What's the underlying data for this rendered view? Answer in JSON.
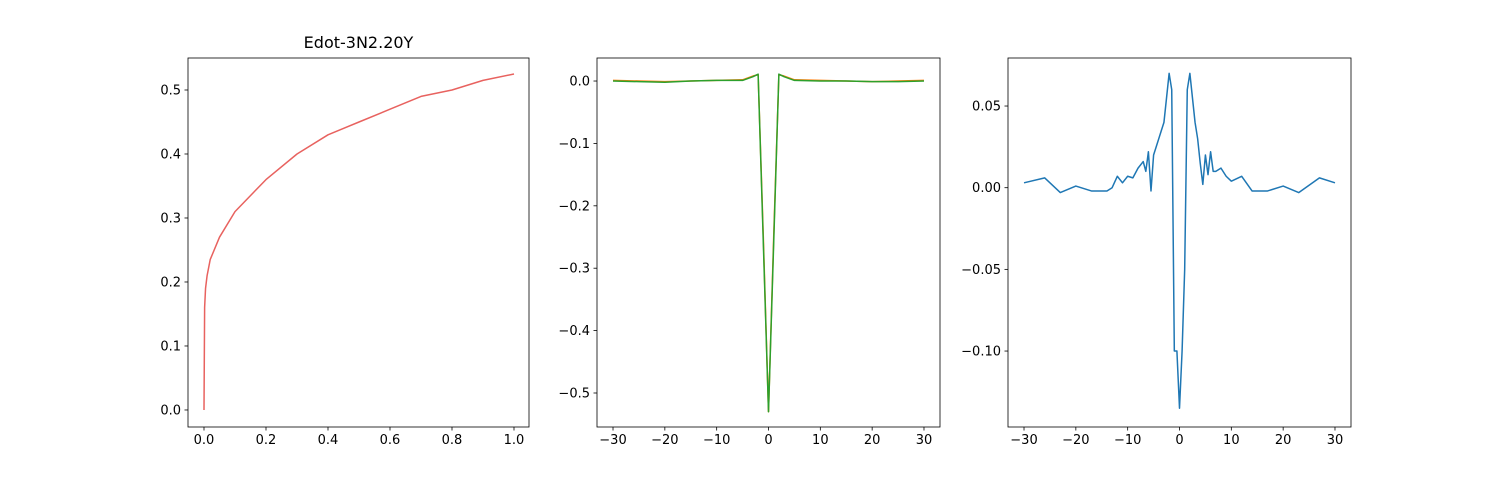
{
  "chart_data": [
    {
      "type": "line",
      "title": "Edot-3N2.20Y",
      "x": [
        0,
        0.002,
        0.005,
        0.01,
        0.02,
        0.05,
        0.1,
        0.2,
        0.3,
        0.4,
        0.5,
        0.6,
        0.7,
        0.8,
        0.9,
        1.0
      ],
      "series": [
        {
          "color": "#e8625f",
          "values": [
            0,
            0.16,
            0.19,
            0.21,
            0.235,
            0.27,
            0.31,
            0.36,
            0.4,
            0.43,
            0.45,
            0.47,
            0.49,
            0.5,
            0.515,
            0.525
          ]
        }
      ],
      "xlim": [
        -0.0516,
        1.0484
      ],
      "ylim": [
        -0.0266,
        0.55
      ],
      "xticks": [
        {
          "value": 0,
          "label": "0.0"
        },
        0.2,
        0.4,
        0.6,
        0.8,
        {
          "value": 1,
          "label": "1.0"
        }
      ],
      "yticks": [
        {
          "value": 0,
          "label": "0.0"
        },
        0.1,
        0.2,
        0.3,
        0.4,
        0.5
      ]
    },
    {
      "type": "line",
      "x": [
        -30,
        -25,
        -20,
        -15,
        -10,
        -5,
        -3,
        -2,
        -1,
        0,
        1,
        2,
        3,
        5,
        10,
        15,
        20,
        25,
        30
      ],
      "series": [
        {
          "color": "#ff7f0e",
          "values": [
            0.001,
            0.0,
            -0.001,
            0.0,
            0.001,
            0.002,
            0.008,
            0.01,
            -0.25,
            -0.53,
            -0.25,
            0.01,
            0.008,
            0.002,
            0.001,
            0.0,
            -0.001,
            0.0,
            0.001
          ]
        },
        {
          "color": "#2ca02c",
          "values": [
            0.0,
            -0.001,
            -0.002,
            0.0,
            0.001,
            0.001,
            0.007,
            0.011,
            -0.26,
            -0.53,
            -0.26,
            0.011,
            0.007,
            0.001,
            0.0,
            0.0,
            -0.001,
            -0.001,
            0.0
          ]
        }
      ],
      "xlim": [
        -33.09,
        33.09
      ],
      "ylim": [
        -0.5545,
        0.0369
      ],
      "xticks": [
        {
          "value": -30,
          "label": "−30"
        },
        {
          "value": -20,
          "label": "−20"
        },
        {
          "value": -10,
          "label": "−10"
        },
        0,
        10,
        20,
        30
      ],
      "yticks": [
        {
          "value": 0,
          "label": "0.0"
        },
        {
          "value": -0.1,
          "label": "−0.1"
        },
        {
          "value": -0.2,
          "label": "−0.2"
        },
        {
          "value": -0.3,
          "label": "−0.3"
        },
        {
          "value": -0.4,
          "label": "−0.4"
        },
        {
          "value": -0.5,
          "label": "−0.5"
        }
      ]
    },
    {
      "type": "line",
      "x": [
        -30,
        -26,
        -23,
        -20,
        -17,
        -14,
        -13,
        -12,
        -11,
        -10,
        -9,
        -8,
        -7,
        -6.5,
        -6,
        -5.5,
        -5,
        -4.5,
        -4,
        -3.5,
        -3,
        -2.5,
        -2,
        -1.5,
        -1,
        -0.5,
        0,
        0.5,
        1,
        1.5,
        2,
        2.5,
        3,
        3.5,
        4,
        4.5,
        5,
        5.5,
        6,
        6.5,
        7,
        8,
        9,
        10,
        12,
        14,
        17,
        20,
        23,
        27,
        30
      ],
      "series": [
        {
          "color": "#1f77b4",
          "values": [
            0.003,
            0.006,
            -0.003,
            0.001,
            -0.002,
            -0.002,
            0.0,
            0.007,
            0.003,
            0.007,
            0.006,
            0.012,
            0.016,
            0.01,
            0.022,
            -0.002,
            0.02,
            0.025,
            0.03,
            0.035,
            0.04,
            0.055,
            0.07,
            0.06,
            -0.1,
            -0.1,
            -0.135,
            -0.1,
            -0.05,
            0.06,
            0.07,
            0.055,
            0.04,
            0.03,
            0.015,
            0.002,
            0.02,
            0.008,
            0.022,
            0.01,
            0.01,
            0.012,
            0.007,
            0.004,
            0.007,
            -0.002,
            -0.002,
            0.001,
            -0.003,
            0.006,
            0.003
          ]
        }
      ],
      "xlim": [
        -33.09,
        33.09
      ],
      "ylim": [
        -0.1465,
        0.0794
      ],
      "xticks": [
        {
          "value": -30,
          "label": "−30"
        },
        {
          "value": -20,
          "label": "−20"
        },
        {
          "value": -10,
          "label": "−10"
        },
        0,
        10,
        20,
        30
      ],
      "yticks": [
        0.05,
        {
          "value": 0,
          "label": "0.00"
        },
        {
          "value": -0.05,
          "label": "−0.05"
        },
        {
          "value": -0.1,
          "label": "−0.10"
        }
      ]
    }
  ]
}
